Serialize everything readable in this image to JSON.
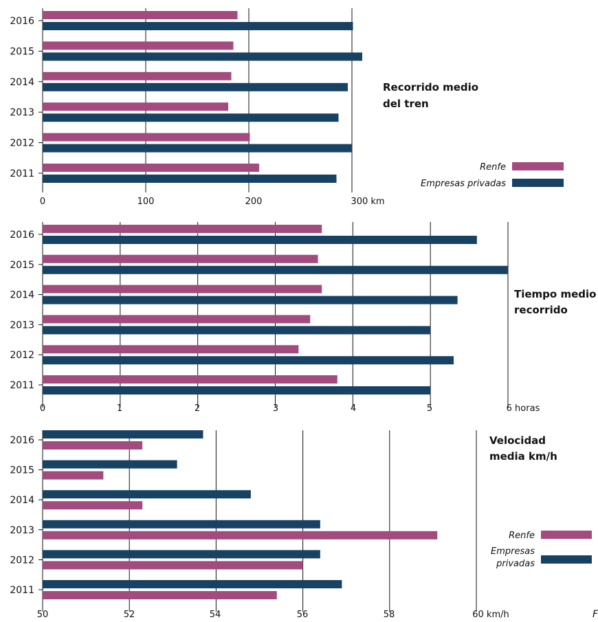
{
  "colors": {
    "renfe": "#a34a7e",
    "privadas": "#184264",
    "grid": "#111111",
    "text": "#111111"
  },
  "chart_data": [
    {
      "type": "bar",
      "orientation": "horizontal",
      "title_lines": [
        "Recorrido medio",
        "del tren"
      ],
      "categories": [
        "2016",
        "2015",
        "2014",
        "2013",
        "2012",
        "2011"
      ],
      "series": [
        {
          "name": "Renfe",
          "color": "#a34a7e",
          "values": [
            189,
            185,
            183,
            180,
            201,
            210
          ]
        },
        {
          "name": "Empresas privadas",
          "color": "#184264",
          "values": [
            301,
            310,
            296,
            287,
            300,
            285
          ]
        }
      ],
      "series_order": [
        "Renfe",
        "Empresas privadas"
      ],
      "xticks": [
        "0",
        "100",
        "200",
        "300 km"
      ],
      "xlim": [
        0,
        300
      ],
      "grid": true,
      "legend": {
        "position": "right",
        "labels": [
          "Renfe",
          "Empresas privadas"
        ]
      }
    },
    {
      "type": "bar",
      "orientation": "horizontal",
      "title_lines": [
        "Tiempo medio",
        "recorrido"
      ],
      "categories": [
        "2016",
        "2015",
        "2014",
        "2013",
        "2012",
        "2011"
      ],
      "series": [
        {
          "name": "Renfe",
          "color": "#a34a7e",
          "values": [
            3.6,
            3.55,
            3.6,
            3.45,
            3.3,
            3.8
          ]
        },
        {
          "name": "Empresas privadas",
          "color": "#184264",
          "values": [
            5.6,
            6.0,
            5.35,
            5.0,
            5.3,
            5.0
          ]
        }
      ],
      "series_order": [
        "Renfe",
        "Empresas privadas"
      ],
      "xticks": [
        "0",
        "1",
        "2",
        "3",
        "4",
        "5",
        "6 horas"
      ],
      "xlim": [
        0,
        6
      ],
      "grid": true
    },
    {
      "type": "bar",
      "orientation": "horizontal",
      "title_lines": [
        "Velocidad",
        "media km/h"
      ],
      "categories": [
        "2016",
        "2015",
        "2014",
        "2013",
        "2012",
        "2011"
      ],
      "series": [
        {
          "name": "Renfe",
          "color": "#a34a7e",
          "values": [
            52.3,
            51.4,
            52.3,
            59.1,
            56.0,
            55.4
          ]
        },
        {
          "name": "Empresas privadas",
          "color": "#184264",
          "values": [
            53.7,
            53.1,
            54.8,
            56.4,
            56.4,
            56.9
          ]
        }
      ],
      "series_order": [
        "Empresas privadas",
        "Renfe"
      ],
      "xticks": [
        "50",
        "52",
        "54",
        "56",
        "58",
        "60 km/h"
      ],
      "xlim": [
        50,
        60
      ],
      "grid": true,
      "legend": {
        "position": "right",
        "labels": [
          "Renfe",
          "Empresas privadas"
        ]
      }
    }
  ],
  "footer_fragment": "F"
}
